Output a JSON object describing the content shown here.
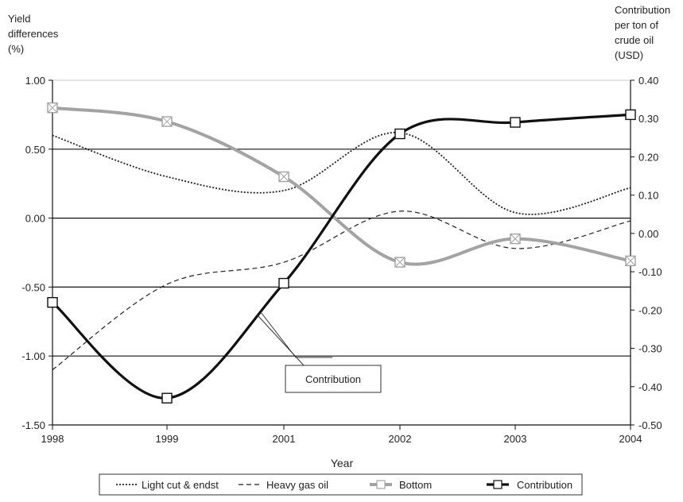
{
  "chart_data": {
    "type": "line",
    "title": "",
    "xlabel": "Year",
    "ylabel_left": [
      "Yield",
      "differences",
      "(%)"
    ],
    "ylabel_right": [
      "Contribution",
      "per ton of",
      "crude oil",
      "(USD)"
    ],
    "categories": [
      "1998",
      "1999",
      "2001",
      "2002",
      "2003",
      "2004"
    ],
    "ylim_left": [
      -1.5,
      1.0
    ],
    "ylim_right": [
      -0.5,
      0.4
    ],
    "yticks_left": [
      "1.00",
      "0.50",
      "0.00",
      "-0.50",
      "-1.00",
      "-1.50"
    ],
    "yticks_right": [
      "0.40",
      "0.30",
      "0.20",
      "0.10",
      "0.00",
      "-0.10",
      "-0.20",
      "-0.30",
      "-0.40",
      "-0.50"
    ],
    "grid_left_values": [
      0.5,
      0.0,
      -0.5,
      -1.0
    ],
    "series": [
      {
        "name": "Light cut & endst",
        "axis": "left",
        "style": "dotted",
        "color": "#222222",
        "values": [
          0.6,
          0.3,
          0.2,
          0.62,
          0.04,
          0.22
        ]
      },
      {
        "name": "Heavy gas oil",
        "axis": "left",
        "style": "dashed",
        "color": "#222222",
        "values": [
          -1.1,
          -0.48,
          -0.32,
          0.05,
          -0.22,
          -0.02
        ]
      },
      {
        "name": "Bottom",
        "axis": "left",
        "style": "solid-thick-marker",
        "color": "#a3a3a3",
        "values": [
          0.8,
          0.7,
          0.3,
          -0.32,
          -0.15,
          -0.31
        ]
      },
      {
        "name": "Contribution",
        "axis": "right",
        "style": "solid-bold-marker",
        "color": "#111111",
        "values": [
          -0.18,
          -0.43,
          -0.13,
          0.26,
          0.29,
          0.31
        ]
      }
    ],
    "annotation": "Contribution",
    "legend_position": "bottom"
  }
}
